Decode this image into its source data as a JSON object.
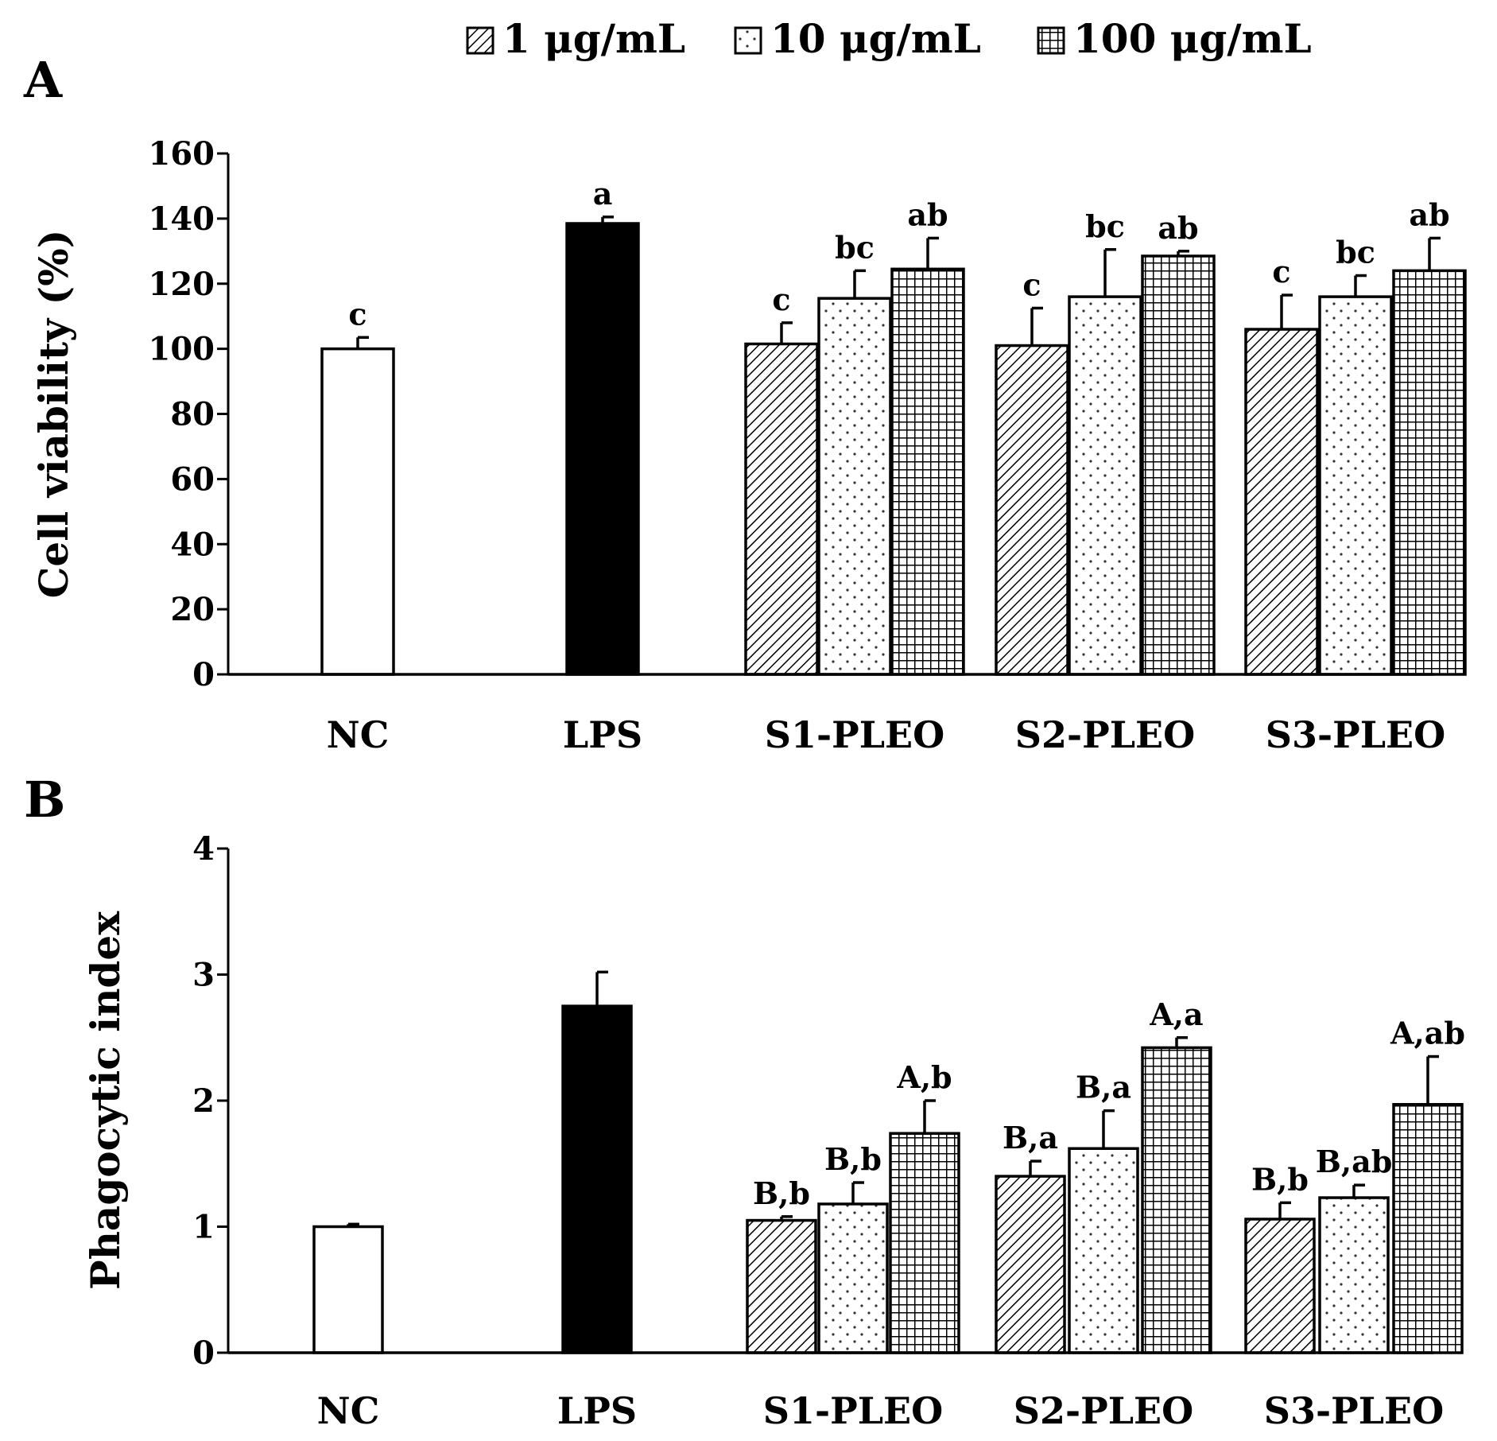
{
  "legend": [
    {
      "label": "1 μg/mL",
      "pattern": "hatch"
    },
    {
      "label": "10 μg/mL",
      "pattern": "dots"
    },
    {
      "label": "100 μg/mL",
      "pattern": "grid"
    }
  ],
  "chart_data": [
    {
      "panel_label": "A",
      "type": "bar",
      "ylabel": "Cell viability (%)",
      "ylim": [
        0,
        160
      ],
      "yticks": [
        0,
        20,
        40,
        60,
        80,
        100,
        120,
        140,
        160
      ],
      "groups": [
        {
          "label": "NC",
          "bars": [
            {
              "pattern": "white",
              "value": 100,
              "error": 3.5,
              "sig": "c"
            }
          ]
        },
        {
          "label": "LPS",
          "bars": [
            {
              "pattern": "black",
              "value": 138.5,
              "error": 2,
              "sig": "a"
            }
          ]
        },
        {
          "label": "S1-PLEO",
          "bars": [
            {
              "pattern": "hatch",
              "value": 101.5,
              "error": 6.5,
              "sig": "c"
            },
            {
              "pattern": "dots",
              "value": 115.5,
              "error": 8.5,
              "sig": "bc"
            },
            {
              "pattern": "grid",
              "value": 124.5,
              "error": 9.5,
              "sig": "ab"
            }
          ]
        },
        {
          "label": "S2-PLEO",
          "bars": [
            {
              "pattern": "hatch",
              "value": 101,
              "error": 11.5,
              "sig": "c"
            },
            {
              "pattern": "dots",
              "value": 116,
              "error": 14.5,
              "sig": "bc"
            },
            {
              "pattern": "grid",
              "value": 128.5,
              "error": 1.5,
              "sig": "ab"
            }
          ]
        },
        {
          "label": "S3-PLEO",
          "bars": [
            {
              "pattern": "hatch",
              "value": 106,
              "error": 10.5,
              "sig": "c"
            },
            {
              "pattern": "dots",
              "value": 116,
              "error": 6.5,
              "sig": "bc"
            },
            {
              "pattern": "grid",
              "value": 124,
              "error": 10,
              "sig": "ab"
            }
          ]
        }
      ]
    },
    {
      "panel_label": "B",
      "type": "bar",
      "ylabel": "Phagocytic index",
      "ylim": [
        0,
        4
      ],
      "yticks": [
        0,
        1,
        2,
        3,
        4
      ],
      "groups": [
        {
          "label": "NC",
          "bars": [
            {
              "pattern": "white",
              "value": 1.0,
              "error": 0.02,
              "sig": ""
            }
          ]
        },
        {
          "label": "LPS",
          "bars": [
            {
              "pattern": "black",
              "value": 2.75,
              "error": 0.27,
              "sig": ""
            }
          ]
        },
        {
          "label": "S1-PLEO",
          "bars": [
            {
              "pattern": "hatch",
              "value": 1.05,
              "error": 0.03,
              "sig": "B,b"
            },
            {
              "pattern": "dots",
              "value": 1.18,
              "error": 0.17,
              "sig": "B,b"
            },
            {
              "pattern": "grid",
              "value": 1.74,
              "error": 0.26,
              "sig": "A,b"
            }
          ]
        },
        {
          "label": "S2-PLEO",
          "bars": [
            {
              "pattern": "hatch",
              "value": 1.4,
              "error": 0.12,
              "sig": "B,a"
            },
            {
              "pattern": "dots",
              "value": 1.62,
              "error": 0.3,
              "sig": "B,a"
            },
            {
              "pattern": "grid",
              "value": 2.42,
              "error": 0.08,
              "sig": "A,a"
            }
          ]
        },
        {
          "label": "S3-PLEO",
          "bars": [
            {
              "pattern": "hatch",
              "value": 1.06,
              "error": 0.13,
              "sig": "B,b"
            },
            {
              "pattern": "dots",
              "value": 1.23,
              "error": 0.1,
              "sig": "B,ab"
            },
            {
              "pattern": "grid",
              "value": 1.97,
              "error": 0.38,
              "sig": "A,ab"
            }
          ]
        }
      ]
    }
  ]
}
